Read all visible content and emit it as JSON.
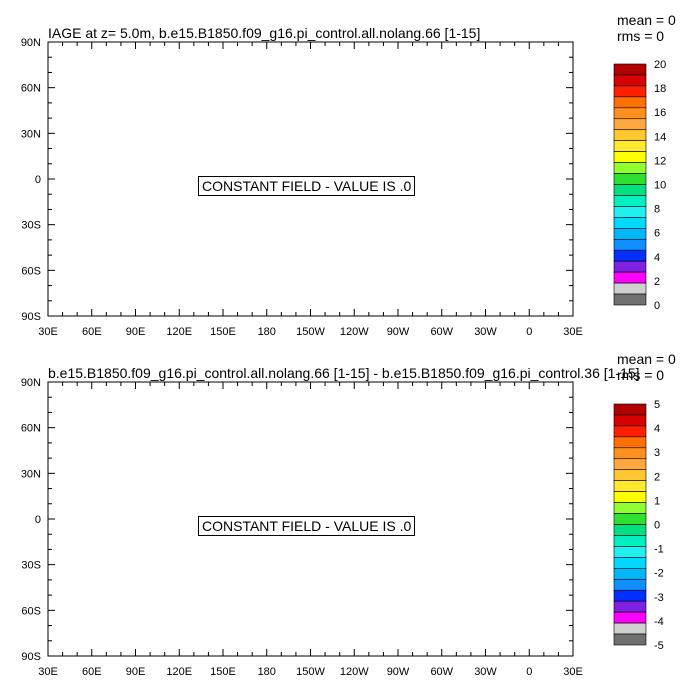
{
  "panels": [
    {
      "title": "IAGE at z=   5.0m, b.e15.B1850.f09_g16.pi_control.all.nolang.66 [1-15]",
      "mean_label": "mean = 0",
      "rms_label": "rms = 0",
      "constant_field_label": "CONSTANT FIELD - VALUE IS .0"
    },
    {
      "title": "b.e15.B1850.f09_g16.pi_control.all.nolang.66 [1-15] - b.e15.B1850.f09_g16.pi_control.36 [1-15]",
      "mean_label": "mean = 0",
      "rms_label": "rms = 0",
      "constant_field_label": "CONSTANT FIELD - VALUE IS .0"
    }
  ],
  "chart_data": [
    {
      "type": "heatmap",
      "title": "IAGE at z=   5.0m, b.e15.B1850.f09_g16.pi_control.all.nolang.66 [1-15]",
      "x_ticks": [
        "30E",
        "60E",
        "90E",
        "120E",
        "150E",
        "180",
        "150W",
        "120W",
        "90W",
        "60W",
        "30W",
        "0",
        "30E"
      ],
      "y_ticks": [
        "90N",
        "60N",
        "30N",
        "0",
        "30S",
        "60S",
        "90S"
      ],
      "xlim": [
        30,
        390
      ],
      "ylim": [
        -90,
        90
      ],
      "grid": false,
      "colorbar": {
        "labels": [
          "20",
          "18",
          "16",
          "14",
          "12",
          "10",
          "8",
          "6",
          "4",
          "2",
          "0"
        ],
        "colors": [
          "#b00000",
          "#d80000",
          "#ff2000",
          "#ff7000",
          "#ff9020",
          "#ffa840",
          "#ffc830",
          "#ffe830",
          "#ffff00",
          "#90ff30",
          "#30e030",
          "#00e080",
          "#00f0c0",
          "#20f0f0",
          "#00d8ff",
          "#00b8f8",
          "#1090ff",
          "#0030ff",
          "#8020e0",
          "#ff00ff",
          "#d0d0d0",
          "#707070"
        ]
      },
      "values": "constant 0.0"
    },
    {
      "type": "heatmap",
      "title": "b.e15.B1850.f09_g16.pi_control.all.nolang.66 [1-15] - b.e15.B1850.f09_g16.pi_control.36 [1-15]",
      "x_ticks": [
        "30E",
        "60E",
        "90E",
        "120E",
        "150E",
        "180",
        "150W",
        "120W",
        "90W",
        "60W",
        "30W",
        "0",
        "30E"
      ],
      "y_ticks": [
        "90N",
        "60N",
        "30N",
        "0",
        "30S",
        "60S",
        "90S"
      ],
      "xlim": [
        30,
        390
      ],
      "ylim": [
        -90,
        90
      ],
      "grid": false,
      "colorbar": {
        "labels": [
          "5",
          "4",
          "3",
          "2",
          "1",
          "0",
          "-1",
          "-2",
          "-3",
          "-4",
          "-5"
        ],
        "colors": [
          "#b00000",
          "#d80000",
          "#ff2000",
          "#ff7000",
          "#ff9020",
          "#ffa840",
          "#ffc830",
          "#ffe830",
          "#ffff00",
          "#90ff30",
          "#30e030",
          "#00e080",
          "#00f0c0",
          "#20f0f0",
          "#00d8ff",
          "#00b8f8",
          "#1090ff",
          "#0030ff",
          "#8020e0",
          "#ff00ff",
          "#d0d0d0",
          "#707070"
        ]
      },
      "values": "constant 0.0"
    }
  ]
}
